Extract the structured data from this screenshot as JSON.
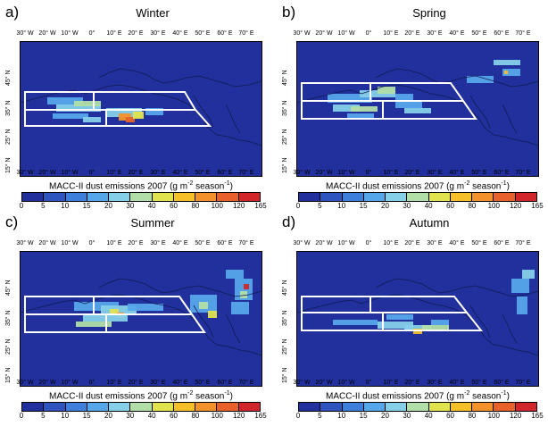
{
  "lon_ticks": [
    "30° W",
    "20° W",
    "10° W",
    "0°",
    "10° E",
    "20° E",
    "30° E",
    "40° E",
    "50° E",
    "60° E",
    "70° E"
  ],
  "lat_ticks": [
    "15° N",
    "25° N",
    "35° N",
    "45° N"
  ],
  "colorbar": {
    "label": "MACC-II dust emissions 2007 (g m-2 season-1)",
    "label_main": "MACC-II dust emissions 2007 (g m",
    "label_sup1": "-2",
    "label_mid": " season",
    "label_sup2": "-1",
    "label_end": ")",
    "ticks": [
      "0",
      "5",
      "10",
      "15",
      "20",
      "30",
      "40",
      "60",
      "80",
      "100",
      "120",
      "165"
    ],
    "colors": [
      "#21309c",
      "#2e55bf",
      "#3d7fda",
      "#56a7ea",
      "#86cfe9",
      "#b2dfa8",
      "#e0e34d",
      "#f6c028",
      "#f3922a",
      "#e8612a",
      "#d1262a"
    ]
  },
  "panels": [
    {
      "letter": "a)",
      "title": "Winter"
    },
    {
      "letter": "b)",
      "title": "Spring"
    },
    {
      "letter": "c)",
      "title": "Summer"
    },
    {
      "letter": "d)",
      "title": "Autumn"
    }
  ]
}
